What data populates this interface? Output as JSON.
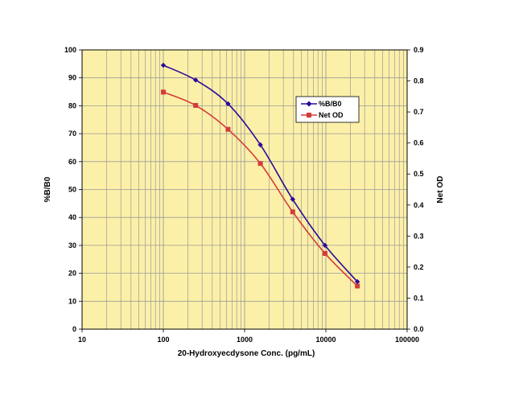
{
  "chart_data": {
    "type": "line",
    "title": "",
    "xlabel": "20-Hydroxyecdysone Conc. (pg/mL)",
    "ylabel": "%B/B0",
    "y2label": "Net OD",
    "x_scale": "log",
    "xlim": [
      10,
      100000
    ],
    "ylim": [
      0,
      100
    ],
    "y2lim": [
      0,
      0.9
    ],
    "x_ticks": [
      "10",
      "100",
      "1000",
      "10000",
      "100000"
    ],
    "y_ticks": [
      "0",
      "10",
      "20",
      "30",
      "40",
      "50",
      "60",
      "70",
      "80",
      "90",
      "100"
    ],
    "y2_ticks": [
      "0.0",
      "0.1",
      "0.2",
      "0.3",
      "0.4",
      "0.5",
      "0.6",
      "0.7",
      "0.8",
      "0.9"
    ],
    "grid": true,
    "legend_position": "upper-right",
    "series": [
      {
        "name": "%B/B0",
        "axis": "left",
        "color": "#2b0a9a",
        "marker": "diamond",
        "x": [
          100,
          250,
          625,
          1563,
          3906,
          9766,
          24414
        ],
        "y": [
          94.5,
          89.2,
          80.7,
          66.0,
          46.5,
          30.0,
          17.0
        ]
      },
      {
        "name": "Net OD",
        "axis": "right",
        "color": "#d43b3b",
        "marker": "square",
        "x": [
          100,
          250,
          625,
          1563,
          3906,
          9766,
          24414
        ],
        "y": [
          0.764,
          0.721,
          0.644,
          0.534,
          0.378,
          0.244,
          0.139
        ]
      }
    ],
    "colors": {
      "plot_bg": "#fcf0a8",
      "grid": "#9a9a9a"
    }
  }
}
